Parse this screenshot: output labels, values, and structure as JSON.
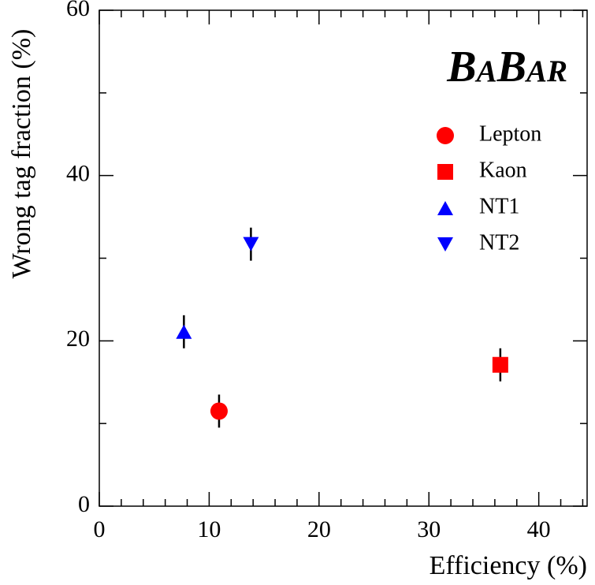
{
  "chart_data": {
    "type": "scatter",
    "logo": "BaBar",
    "x_label": "Efficiency (%)",
    "y_label": "Wrong tag fraction (%)",
    "xlim": [
      0,
      44.4
    ],
    "ylim": [
      0,
      60
    ],
    "xticks": [
      0,
      10,
      20,
      30,
      40
    ],
    "yticks": [
      0,
      20,
      40,
      60
    ],
    "xminorticks": [
      2,
      4,
      6,
      8,
      12,
      14,
      16,
      18,
      22,
      24,
      26,
      28,
      32,
      34,
      36,
      38,
      42,
      44
    ],
    "yminorticks": [
      10,
      30,
      50
    ],
    "legend": "upper right",
    "series": [
      {
        "name": "Lepton",
        "color": "#ff0000",
        "marker": "circle",
        "x": [
          10.9
        ],
        "values": [
          11.5
        ],
        "errors": [
          2.0
        ]
      },
      {
        "name": "Kaon",
        "color": "#ff0000",
        "marker": "square",
        "x": [
          36.5
        ],
        "values": [
          17.1
        ],
        "errors": [
          2.0
        ]
      },
      {
        "name": "NT1",
        "color": "#0000ff",
        "marker": "triangle-up",
        "x": [
          7.7
        ],
        "values": [
          21.1
        ],
        "errors": [
          2.0
        ]
      },
      {
        "name": "NT2",
        "color": "#0000ff",
        "marker": "triangle-down",
        "x": [
          13.8
        ],
        "values": [
          31.7
        ],
        "errors": [
          2.0
        ]
      }
    ]
  }
}
